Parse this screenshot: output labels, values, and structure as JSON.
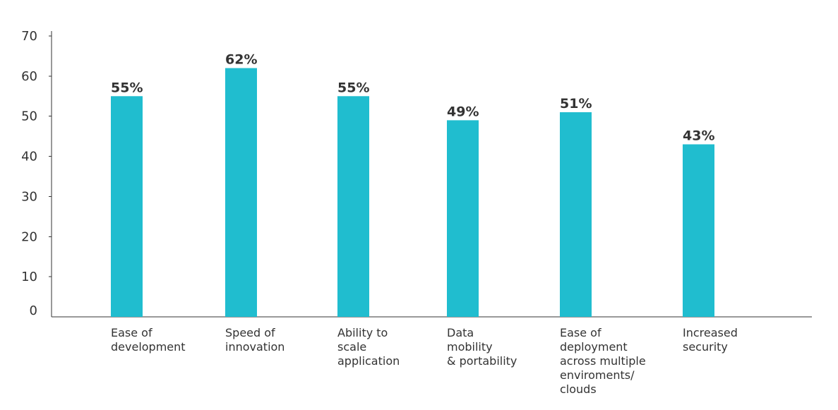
{
  "chart_data": {
    "type": "bar",
    "categories": [
      "Ease of development",
      "Speed of innovation",
      "Ability to scale application",
      "Data mobility & portability",
      "Ease of deployment across multiple enviroments/ clouds",
      "Increased security"
    ],
    "category_label_lines": [
      [
        "Ease of",
        "development"
      ],
      [
        "Speed of",
        "innovation"
      ],
      [
        "Ability to",
        "scale",
        "application"
      ],
      [
        "Data",
        "mobility",
        "& portability"
      ],
      [
        "Ease of",
        "deployment",
        "across multiple",
        "enviroments/",
        "clouds"
      ],
      [
        "Increased",
        "security"
      ]
    ],
    "values": [
      55,
      62,
      55,
      49,
      51,
      43
    ],
    "data_labels": [
      "55%",
      "62%",
      "55%",
      "49%",
      "51%",
      "43%"
    ],
    "ylim": [
      0,
      70
    ],
    "yticks": [
      0,
      10,
      20,
      30,
      40,
      50,
      60,
      70
    ],
    "bar_color": "#20BDCF",
    "grid": false,
    "legend": "none",
    "title": "",
    "xlabel": "",
    "ylabel": ""
  }
}
